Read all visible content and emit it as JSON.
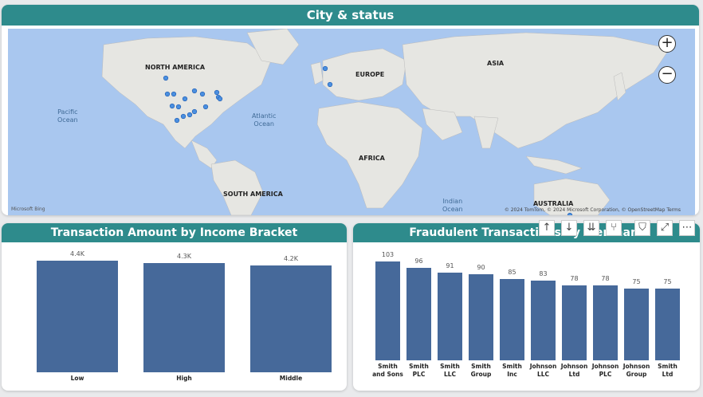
{
  "map": {
    "title": "City & status",
    "continents": [
      "NORTH AMERICA",
      "EUROPE",
      "ASIA",
      "AFRICA",
      "SOUTH AMERICA",
      "AUSTRALIA"
    ],
    "oceans": {
      "pacific": "Pacific\nOcean",
      "atlantic": "Atlantic\nOcean",
      "indian": "Indian\nOcean"
    },
    "zoom_in": "+",
    "zoom_out": "−",
    "attribution": "© 2024 TomTom, © 2024 Microsoft Corporation, © OpenStreetMap Terms",
    "logo_text": "Microsoft Bing",
    "point_color": "#4a8fe0"
  },
  "toolbar": {
    "icons": [
      "up-arrow-icon",
      "down-arrow-icon",
      "double-down-icon",
      "fork-icon",
      "filter-icon",
      "focus-icon",
      "more-icon"
    ]
  },
  "chart_data": [
    {
      "type": "bar",
      "title": "Transaction Amount by Income Bracket",
      "categories": [
        "Low",
        "High",
        "Middle"
      ],
      "values": [
        4400,
        4300,
        4200
      ],
      "data_labels": [
        "4.4K",
        "4.3K",
        "4.2K"
      ],
      "color": "#46699a"
    },
    {
      "type": "bar",
      "title": "Fraudulent Transactions by Merchant",
      "categories": [
        "Smith and Sons",
        "Smith PLC",
        "Smith LLC",
        "Smith Group",
        "Smith Inc",
        "Johnson LLC",
        "Johnson Ltd",
        "Johnson PLC",
        "Johnson Group",
        "Smith Ltd"
      ],
      "values": [
        103,
        96,
        91,
        90,
        85,
        83,
        78,
        78,
        75,
        75
      ],
      "color": "#46699a"
    }
  ]
}
